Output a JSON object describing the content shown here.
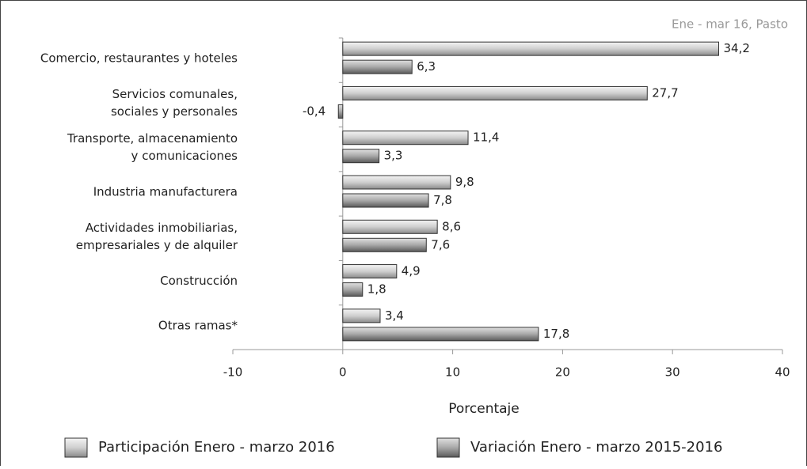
{
  "chart_data": {
    "type": "hbar",
    "annotation": "Ene - mar 16, Pasto",
    "x_label": "Porcentaje",
    "categories": [
      [
        "Comercio, restaurantes y hoteles"
      ],
      [
        "Servicios comunales,",
        "sociales y personales"
      ],
      [
        "Transporte, almacenamiento",
        "y comunicaciones"
      ],
      [
        "Industria manufacturera"
      ],
      [
        "Actividades inmobiliarias,",
        "empresariales y de alquiler"
      ],
      [
        "Construcción"
      ],
      [
        "Otras ramas*"
      ]
    ],
    "series": [
      {
        "name": "Participación Enero - marzo 2016",
        "color": "#b0b0b0",
        "values": [
          34.2,
          27.7,
          11.4,
          9.8,
          8.6,
          4.9,
          3.4
        ],
        "value_labels": [
          "34,2",
          "27,7",
          "11,4",
          "9,8",
          "8,6",
          "4,9",
          "3,4"
        ]
      },
      {
        "name": "Variación Enero - marzo 2015-2016",
        "color": "#8a8a8a",
        "values": [
          6.3,
          -0.4,
          3.3,
          7.8,
          7.6,
          1.8,
          17.8
        ],
        "value_labels": [
          "6,3",
          "-0,4",
          "3,3",
          "7,8",
          "7,6",
          "1,8",
          "17,8"
        ]
      }
    ],
    "xlim": [
      -10,
      40
    ],
    "xticks": [
      -10,
      0,
      10,
      20,
      30,
      40
    ]
  }
}
